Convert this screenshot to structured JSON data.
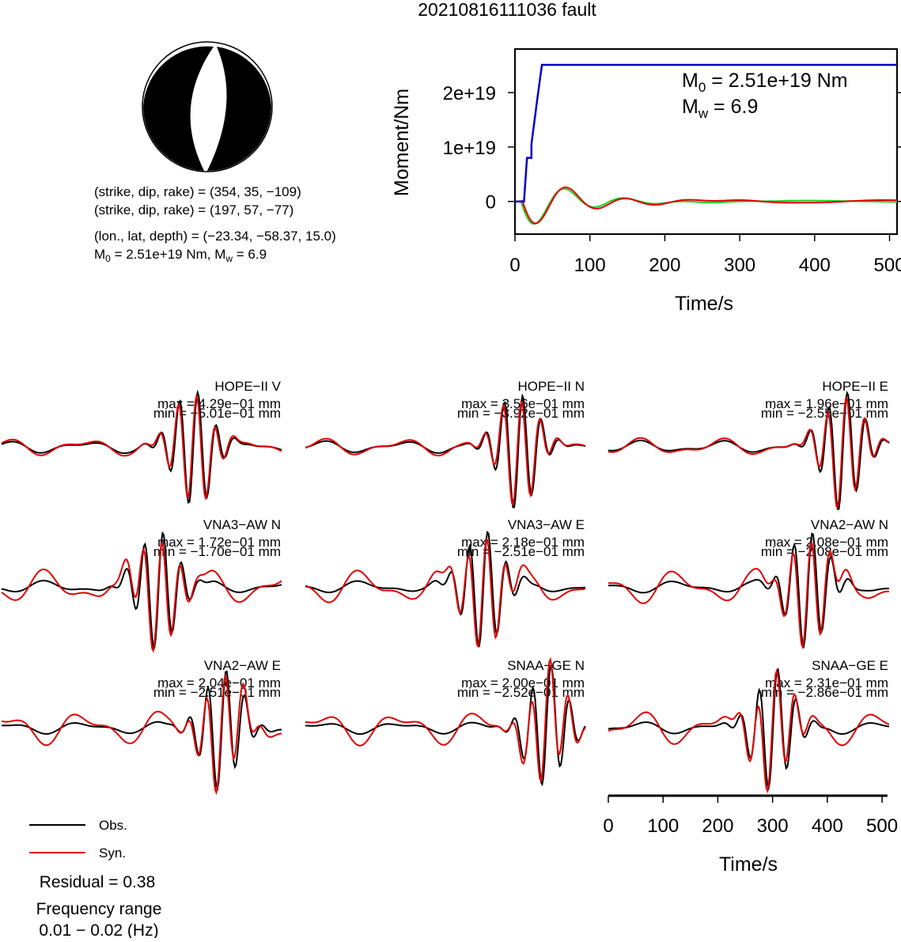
{
  "title": "20210816111036 fault",
  "colors": {
    "obs": "#000000",
    "syn": "#e00000",
    "moment": "#0000cc",
    "moment_rate_syn": "#e00000",
    "moment_rate_obs": "#22cc22"
  },
  "mechanism": {
    "line1": "(strike, dip, rake) = (354, 35, −109)",
    "line2": "(strike, dip, rake) = (197, 57, −77)",
    "line3": "(lon., lat, depth) = (−23.34, −58.37, 15.0)",
    "m0_prefix": "M",
    "m0_sub": "0",
    "m0_mid": " = 2.51e+19 Nm, M",
    "mw_sub": "w",
    "mw_tail": " = 6.9"
  },
  "moment_panel": {
    "ylabel": "Moment/Nm",
    "xlabel": "Time/s",
    "m0_prefix": "M",
    "m0_sub": "0",
    "m0_tail": " = 2.51e+19 Nm",
    "mw_prefix": "M",
    "mw_sub": "w",
    "mw_tail": " = 6.9"
  },
  "chart_data": [
    {
      "type": "line",
      "title": "",
      "xlabel": "Time/s",
      "ylabel": "Moment/Nm",
      "xlim": [
        0,
        510
      ],
      "ylim": [
        -6e+18,
        2.8e+19
      ],
      "x_ticks": [
        0,
        100,
        200,
        300,
        400,
        500
      ],
      "x_tick_labels": [
        "0",
        "100",
        "200",
        "300",
        "400",
        "500"
      ],
      "y_ticks": [
        0,
        1e+19,
        2e+19
      ],
      "y_tick_labels": [
        "0",
        "1e+19",
        "2e+19"
      ],
      "series": [
        {
          "color": "#0000cc",
          "x": [
            0,
            12,
            16,
            16,
            22,
            22,
            30,
            36,
            510
          ],
          "y": [
            0,
            0,
            8e+18,
            8e+18,
            8e+18,
            1.05e+19,
            1.9e+19,
            2.51e+19,
            2.51e+19
          ]
        }
      ]
    },
    {
      "type": "line",
      "title": "",
      "xlabel": "Time/s",
      "xlim": [
        0,
        510
      ],
      "x_ticks": [
        0,
        100,
        200,
        300,
        400,
        500
      ],
      "x_tick_labels": [
        "0",
        "100",
        "200",
        "300",
        "400",
        "500"
      ],
      "legend": {
        "position": "bottom-left",
        "entries": [
          "Obs.",
          "Syn."
        ]
      },
      "panels": [
        {
          "station": "HOPE−II V",
          "max": "max = 4.29e−01 mm",
          "min": "min = −5.01e−01 mm"
        },
        {
          "station": "HOPE−II N",
          "max": "max = 3.56e−01 mm",
          "min": "min = −3.92e−01 mm"
        },
        {
          "station": "HOPE−II E",
          "max": "max = 1.96e−01 mm",
          "min": "min = −2.55e−01 mm"
        },
        {
          "station": "VNA3−AW N",
          "max": "max = 1.72e−01 mm",
          "min": "min = −1.70e−01 mm"
        },
        {
          "station": "VNA3−AW E",
          "max": "max = 2.18e−01 mm",
          "min": "min = −2.51e−01 mm"
        },
        {
          "station": "VNA2−AW N",
          "max": "max = 2.08e−01 mm",
          "min": "min = −2.08e−01 mm"
        },
        {
          "station": "VNA2−AW E",
          "max": "max = 2.04e−01 mm",
          "min": "min = −2.51e−01 mm"
        },
        {
          "station": "SNAA−GE N",
          "max": "max = 2.00e−01 mm",
          "min": "min = −2.52e−01 mm"
        },
        {
          "station": "SNAA−GE E",
          "max": "max = 2.31e−01 mm",
          "min": "min = −2.86e−01 mm"
        }
      ]
    }
  ],
  "legend": {
    "obs": "Obs.",
    "syn": "Syn."
  },
  "residual": "Residual = 0.38",
  "freq_label": "Frequency range",
  "freq_value": "0.01 − 0.02 (Hz)"
}
